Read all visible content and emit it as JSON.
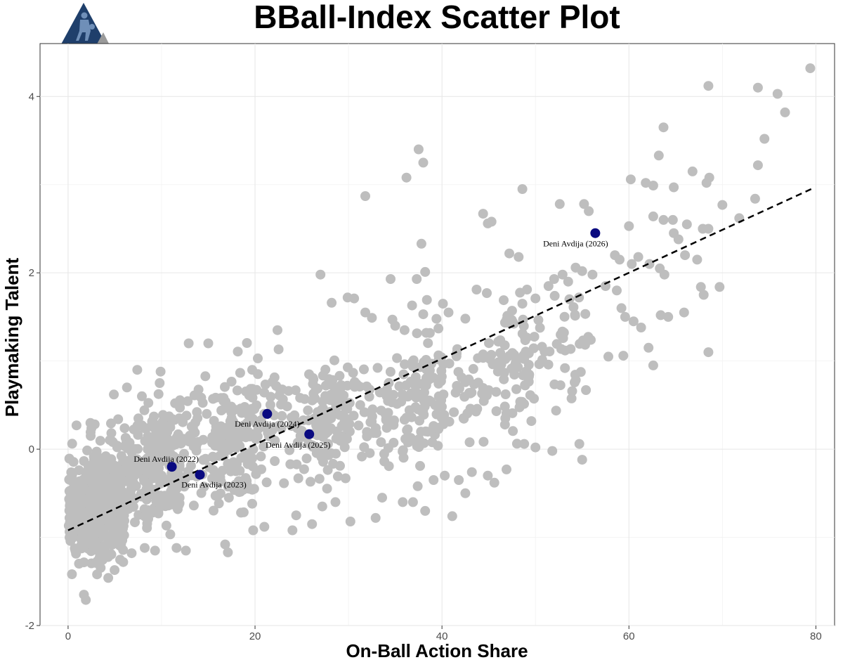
{
  "chart_data": {
    "type": "scatter",
    "title": "BBall-Index Scatter Plot",
    "xlabel": "On-Ball Action Share",
    "ylabel": "Playmaking Talent",
    "xlim": [
      -3,
      82
    ],
    "ylim": [
      -2,
      4.6
    ],
    "xticks": [
      0,
      20,
      40,
      60,
      80
    ],
    "yticks": [
      -2,
      0,
      2,
      4
    ],
    "grid": true,
    "point_color": "#bebebe",
    "highlight_color": "#0a0a80",
    "trendline": {
      "style": "dashed",
      "color": "#000000",
      "x": [
        0,
        79.5
      ],
      "y": [
        -0.92,
        2.95
      ]
    },
    "highlighted": [
      {
        "label": "Deni Avdija (2022)",
        "x": 11.1,
        "y": -0.2
      },
      {
        "label": "Deni Avdija (2023)",
        "x": 14.1,
        "y": -0.29
      },
      {
        "label": "Deni Avdija (2024)",
        "x": 21.3,
        "y": 0.4
      },
      {
        "label": "Deni Avdija (2025)",
        "x": 25.8,
        "y": 0.17
      },
      {
        "label": "Deni Avdija (2026)",
        "x": 56.4,
        "y": 2.45
      }
    ],
    "points": [
      [
        79.4,
        4.32
      ],
      [
        68.5,
        4.12
      ],
      [
        73.8,
        4.1
      ],
      [
        75.9,
        4.03
      ],
      [
        76.7,
        3.82
      ],
      [
        74.5,
        3.52
      ],
      [
        73.8,
        3.22
      ],
      [
        63.7,
        3.65
      ],
      [
        37.5,
        3.4
      ],
      [
        38.0,
        3.25
      ],
      [
        36.2,
        3.08
      ],
      [
        31.8,
        2.87
      ],
      [
        48.6,
        2.95
      ],
      [
        52.6,
        2.78
      ],
      [
        55.2,
        2.78
      ],
      [
        55.7,
        2.7
      ],
      [
        66.8,
        3.15
      ],
      [
        68.6,
        3.08
      ],
      [
        68.3,
        3.02
      ],
      [
        60.2,
        3.06
      ],
      [
        61.8,
        3.02
      ],
      [
        62.6,
        2.99
      ],
      [
        64.8,
        2.97
      ],
      [
        63.2,
        3.33
      ],
      [
        73.5,
        2.84
      ],
      [
        70.0,
        2.77
      ],
      [
        71.8,
        2.62
      ],
      [
        67.9,
        2.5
      ],
      [
        68.5,
        2.5
      ],
      [
        66.2,
        2.55
      ],
      [
        64.7,
        2.6
      ],
      [
        63.7,
        2.6
      ],
      [
        62.6,
        2.64
      ],
      [
        60.0,
        2.53
      ],
      [
        44.4,
        2.67
      ],
      [
        45.3,
        2.58
      ],
      [
        44.9,
        2.56
      ],
      [
        37.8,
        2.33
      ],
      [
        47.2,
        2.22
      ],
      [
        48.2,
        2.18
      ],
      [
        37.3,
        1.93
      ],
      [
        38.2,
        2.01
      ],
      [
        34.5,
        1.93
      ],
      [
        27.0,
        1.98
      ],
      [
        29.9,
        1.72
      ],
      [
        30.6,
        1.71
      ],
      [
        28.2,
        1.66
      ],
      [
        31.8,
        1.55
      ],
      [
        32.5,
        1.49
      ],
      [
        34.7,
        1.47
      ],
      [
        35.0,
        1.4
      ],
      [
        36.0,
        1.35
      ],
      [
        36.8,
        1.63
      ],
      [
        38.0,
        1.53
      ],
      [
        40.1,
        1.65
      ],
      [
        40.7,
        1.55
      ],
      [
        42.5,
        1.48
      ],
      [
        43.7,
        1.81
      ],
      [
        44.8,
        1.77
      ],
      [
        46.6,
        1.69
      ],
      [
        47.5,
        1.57
      ],
      [
        48.6,
        1.65
      ],
      [
        49.1,
        1.81
      ],
      [
        50.0,
        1.71
      ],
      [
        51.4,
        1.85
      ],
      [
        52.0,
        1.93
      ],
      [
        52.9,
        1.98
      ],
      [
        53.5,
        1.9
      ],
      [
        54.3,
        2.06
      ],
      [
        55.0,
        2.02
      ],
      [
        56.1,
        1.98
      ],
      [
        57.5,
        1.85
      ],
      [
        58.5,
        2.2
      ],
      [
        59.0,
        2.15
      ],
      [
        60.3,
        2.1
      ],
      [
        61.0,
        2.18
      ],
      [
        62.2,
        2.1
      ],
      [
        63.3,
        2.05
      ],
      [
        63.8,
        1.98
      ],
      [
        64.8,
        2.45
      ],
      [
        65.3,
        2.38
      ],
      [
        66.0,
        2.2
      ],
      [
        67.3,
        2.15
      ],
      [
        67.7,
        1.84
      ],
      [
        68.0,
        1.75
      ],
      [
        69.7,
        1.84
      ],
      [
        58.7,
        1.8
      ],
      [
        59.2,
        1.6
      ],
      [
        59.6,
        1.5
      ],
      [
        60.5,
        1.45
      ],
      [
        61.3,
        1.38
      ],
      [
        63.4,
        1.52
      ],
      [
        64.2,
        1.5
      ],
      [
        65.9,
        1.55
      ],
      [
        68.5,
        1.1
      ],
      [
        62.1,
        1.15
      ],
      [
        62.6,
        0.95
      ],
      [
        57.8,
        1.05
      ],
      [
        59.4,
        1.06
      ],
      [
        55.4,
        0.67
      ],
      [
        54.7,
        0.06
      ],
      [
        55.0,
        -0.12
      ],
      [
        51.8,
        -0.02
      ],
      [
        50.0,
        0.02
      ],
      [
        48.8,
        0.06
      ],
      [
        46.9,
        -0.23
      ],
      [
        45.6,
        -0.38
      ],
      [
        44.9,
        -0.3
      ],
      [
        43.2,
        -0.26
      ],
      [
        41.1,
        -0.76
      ],
      [
        42.5,
        -0.5
      ],
      [
        41.8,
        -0.35
      ],
      [
        12.9,
        1.2
      ],
      [
        15.0,
        1.2
      ],
      [
        22.4,
        1.35
      ],
      [
        20.3,
        1.03
      ],
      [
        19.7,
        0.9
      ],
      [
        7.4,
        0.9
      ],
      [
        9.9,
        0.88
      ],
      [
        9.8,
        0.75
      ],
      [
        6.3,
        0.7
      ],
      [
        4.9,
        0.62
      ],
      [
        0.9,
        0.27
      ],
      [
        7.9,
        0.6
      ],
      [
        17.1,
        -1.17
      ],
      [
        16.8,
        -1.08
      ],
      [
        12.6,
        -1.15
      ],
      [
        11.6,
        -1.12
      ],
      [
        9.3,
        -1.15
      ],
      [
        8.2,
        -1.12
      ],
      [
        6.8,
        -1.18
      ],
      [
        5.9,
        -1.28
      ],
      [
        4.3,
        -1.46
      ],
      [
        3.1,
        -1.42
      ],
      [
        1.7,
        -1.65
      ],
      [
        1.9,
        -1.71
      ],
      [
        30.2,
        -0.82
      ],
      [
        28.6,
        -0.6
      ],
      [
        26.1,
        -0.85
      ],
      [
        24.4,
        -0.75
      ],
      [
        32.9,
        -0.78
      ],
      [
        33.6,
        -0.55
      ],
      [
        35.8,
        -0.6
      ],
      [
        36.9,
        -0.6
      ],
      [
        37.4,
        -0.42
      ],
      [
        39.1,
        -0.35
      ],
      [
        40.3,
        -0.3
      ],
      [
        38.2,
        -0.7
      ],
      [
        27.2,
        -0.65
      ],
      [
        24.0,
        -0.92
      ],
      [
        19.8,
        -0.92
      ],
      [
        21.0,
        -0.88
      ],
      [
        18.5,
        -0.72
      ],
      [
        17.2,
        -0.55
      ]
    ],
    "clusters": [
      {
        "x0": 0.0,
        "x1": 6.0,
        "y0": -1.5,
        "y1": 0.1,
        "n": 380,
        "seed": 11
      },
      {
        "x0": 2.0,
        "x1": 12.0,
        "y0": -1.2,
        "y1": 0.6,
        "n": 260,
        "seed": 23
      },
      {
        "x0": 8.0,
        "x1": 20.0,
        "y0": -1.0,
        "y1": 0.9,
        "n": 210,
        "seed": 37
      },
      {
        "x0": 16.0,
        "x1": 30.0,
        "y0": -0.7,
        "y1": 1.3,
        "n": 170,
        "seed": 41
      },
      {
        "x0": 26.0,
        "x1": 40.0,
        "y0": -0.5,
        "y1": 1.4,
        "n": 150,
        "seed": 53
      },
      {
        "x0": 36.0,
        "x1": 50.0,
        "y0": -0.2,
        "y1": 1.8,
        "n": 130,
        "seed": 67
      },
      {
        "x0": 46.0,
        "x1": 56.0,
        "y0": 0.3,
        "y1": 2.1,
        "n": 70,
        "seed": 79
      }
    ]
  }
}
